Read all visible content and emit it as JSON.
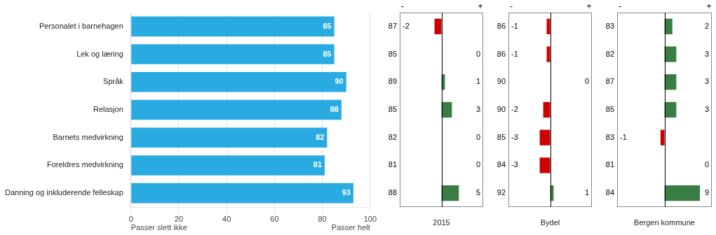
{
  "chart_data": [
    {
      "type": "bar",
      "orientation": "horizontal",
      "categories": [
        "Personalet i barnehagen",
        "Lek og læring",
        "Språk",
        "Relasjon",
        "Barnets medvirkning",
        "Foreldres medvirkning",
        "Danning og inkluderende felleskap"
      ],
      "values": [
        85,
        85,
        90,
        88,
        82,
        81,
        93
      ],
      "color": "#29ABE2",
      "data_labels": true,
      "xlim": [
        0,
        100
      ],
      "xticks": [
        0,
        20,
        40,
        60,
        80,
        100
      ],
      "grid": true,
      "annotations": [
        "Passer slett ikke",
        "Passer helt"
      ]
    },
    {
      "type": "bar",
      "orientation": "horizontal",
      "xlabel": "2015",
      "scores": [
        87,
        85,
        89,
        85,
        82,
        81,
        88
      ],
      "values": [
        -2,
        0,
        1,
        3,
        0,
        0,
        5
      ],
      "colors": [
        "#CC0000",
        "#CC0000",
        "#3A7D44",
        "#3A7D44",
        "#CC0000",
        "#CC0000",
        "#3A7D44"
      ],
      "xlim": [
        -12,
        12
      ],
      "data_labels": true,
      "tick_labels": false,
      "annotations": [
        "-",
        "+"
      ]
    },
    {
      "type": "bar",
      "orientation": "horizontal",
      "xlabel": "Bydel",
      "scores": [
        86,
        86,
        90,
        90,
        85,
        84,
        92
      ],
      "values": [
        -1,
        -1,
        0,
        -2,
        -3,
        -3,
        1
      ],
      "colors": [
        "#CC0000",
        "#CC0000",
        "#CC0000",
        "#CC0000",
        "#CC0000",
        "#CC0000",
        "#3A7D44"
      ],
      "xlim": [
        -12,
        12
      ],
      "data_labels": true,
      "tick_labels": false,
      "annotations": [
        "-",
        "+"
      ]
    },
    {
      "type": "bar",
      "orientation": "horizontal",
      "xlabel": "Bergen kommune",
      "scores": [
        83,
        82,
        87,
        85,
        83,
        81,
        84
      ],
      "values": [
        2,
        3,
        3,
        3,
        -1,
        0,
        9
      ],
      "colors": [
        "#3A7D44",
        "#3A7D44",
        "#3A7D44",
        "#3A7D44",
        "#CC0000",
        "#CC0000",
        "#3A7D44"
      ],
      "xlim": [
        -12,
        12
      ],
      "data_labels": true,
      "tick_labels": false,
      "annotations": [
        "-",
        "+"
      ]
    }
  ]
}
